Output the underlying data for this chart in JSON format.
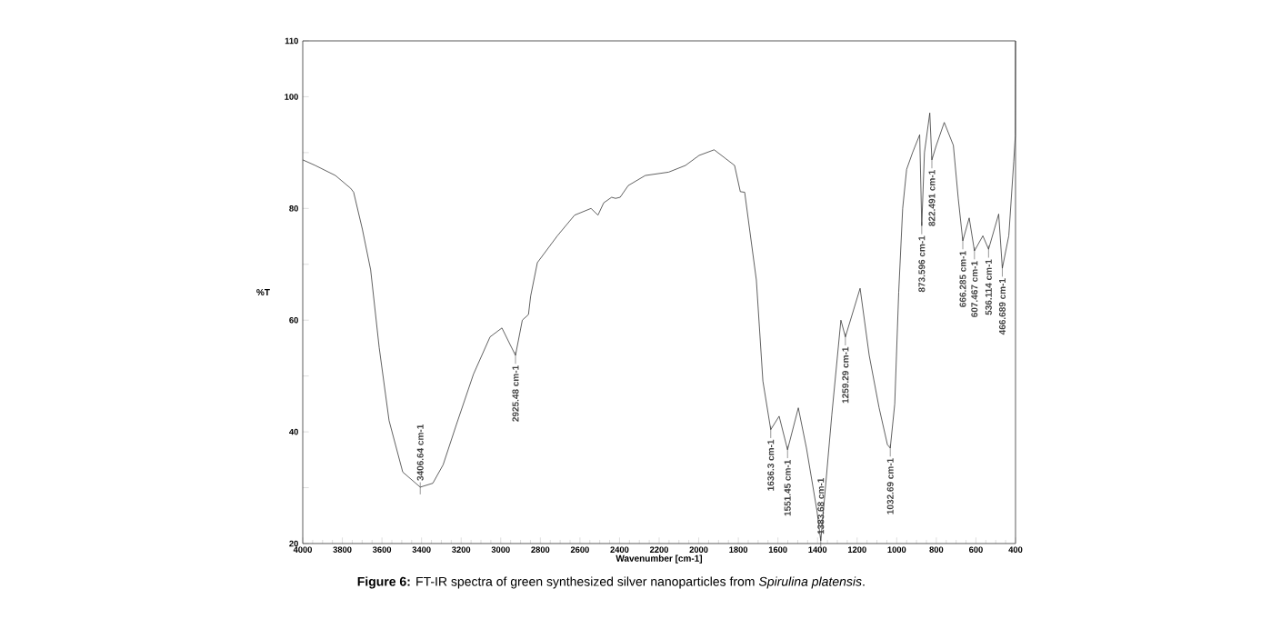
{
  "chart_data": {
    "type": "line",
    "xlabel": "Wavenumber [cm-1]",
    "ylabel": "%T",
    "xlim": [
      4000,
      400
    ],
    "ylim": [
      20,
      110
    ],
    "xticks": [
      4000,
      3800,
      3600,
      3400,
      3200,
      3000,
      2800,
      2600,
      2400,
      2200,
      2000,
      1800,
      1600,
      1400,
      1200,
      1000,
      800,
      600,
      400
    ],
    "yticks": [
      20,
      {
        "value": 30,
        "label": null
      },
      40,
      {
        "value": 50,
        "label": null
      },
      60,
      {
        "value": 70,
        "label": null
      },
      80,
      {
        "value": 90,
        "label": null
      },
      100,
      110
    ],
    "grid": false,
    "series": [
      {
        "color": "#3a3a3a",
        "x": [
          4000,
          3937,
          3835,
          3758,
          3743,
          3699,
          3657,
          3614,
          3564,
          3495,
          3406.64,
          3343,
          3291,
          3224,
          3138,
          3054,
          2994,
          2951,
          2925.48,
          2891,
          2860,
          2849,
          2815,
          2714,
          2627,
          2544,
          2509,
          2480,
          2440,
          2420,
          2397,
          2356,
          2270,
          2152,
          2067,
          1998,
          1922,
          1819,
          1790,
          1768,
          1709,
          1676,
          1636.3,
          1594,
          1551.45,
          1497,
          1456,
          1403,
          1383.68,
          1328,
          1282,
          1259.29,
          1185,
          1139,
          1089,
          1047,
          1032.69,
          1010,
          990,
          970,
          950,
          920,
          884,
          873.596,
          860,
          833,
          822.491,
          800,
          760,
          714,
          689,
          666.285,
          634,
          607.467,
          565,
          536.114,
          485,
          466.689,
          434,
          409,
          401,
          400
        ],
        "values": [
          88.7,
          87.7,
          85.9,
          83.6,
          82.9,
          76.3,
          69,
          55.1,
          42,
          32.8,
          30.1,
          30.8,
          34.1,
          41.3,
          50.3,
          57,
          58.6,
          55.5,
          53.7,
          60,
          61,
          64.3,
          70.3,
          75.1,
          78.8,
          80,
          78.8,
          81,
          82,
          81.8,
          82,
          84.1,
          85.9,
          86.5,
          87.7,
          89.5,
          90.5,
          87.7,
          83,
          82.9,
          67.2,
          49.1,
          40.4,
          42.8,
          36.8,
          44.3,
          37.1,
          25.9,
          20.5,
          43,
          60,
          57,
          65.7,
          53.7,
          44.3,
          37.7,
          37.1,
          45,
          65,
          80,
          87,
          90,
          93.2,
          76.9,
          90,
          97.1,
          88.7,
          91.3,
          95.4,
          91.3,
          81.7,
          74.2,
          78.3,
          72.4,
          75.1,
          72.7,
          79,
          69.3,
          75.1,
          88.4,
          93,
          110
        ]
      }
    ],
    "annotations": [
      {
        "text": "3406.64 cm-1",
        "x": 3406.64,
        "y": 30.1
      },
      {
        "text": "2925.48 cm-1",
        "x": 2925.48,
        "y": 53.7
      },
      {
        "text": "1636.3 cm-1",
        "x": 1636.3,
        "y": 40.4
      },
      {
        "text": "1551.45 cm-1",
        "x": 1551.45,
        "y": 36.8
      },
      {
        "text": "1383.68 cm-1",
        "x": 1383.68,
        "y": 20.5
      },
      {
        "text": "1259.29 cm-1",
        "x": 1259.29,
        "y": 57
      },
      {
        "text": "1032.69 cm-1",
        "x": 1032.69,
        "y": 37.1
      },
      {
        "text": "873.596 cm-1",
        "x": 873.596,
        "y": 76.9
      },
      {
        "text": "822.491 cm-1",
        "x": 822.491,
        "y": 88.7
      },
      {
        "text": "666.285 cm-1",
        "x": 666.285,
        "y": 74.2
      },
      {
        "text": "607.467 cm-1",
        "x": 607.467,
        "y": 72.4
      },
      {
        "text": "536.114 cm-1",
        "x": 536.114,
        "y": 72.7
      },
      {
        "text": "466.689 cm-1",
        "x": 466.689,
        "y": 69.3
      },
      "**Figure 6:** FT-IR spectra of green synthesized silver nanoparticles from *Spirulina platensis*."
    ]
  }
}
